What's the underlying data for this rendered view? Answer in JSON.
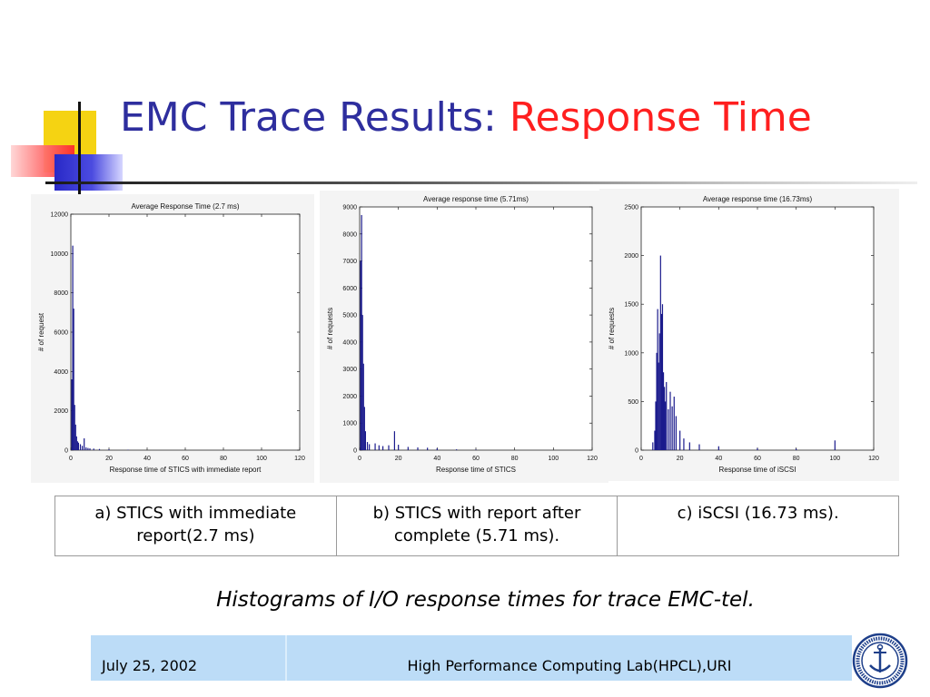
{
  "slide": {
    "title_part1": "EMC Trace Results: ",
    "title_part2": "Response Time",
    "title_color1": "#2e2e9e",
    "title_color2": "#ff1f1f",
    "footnote": "Histograms of I/O response times for trace EMC-tel."
  },
  "captions": [
    "a) STICS with immediate report(2.7 ms)",
    "b) STICS with report after complete (5.71 ms).",
    "c) iSCSI (16.73 ms)."
  ],
  "footer": {
    "date": "July 25, 2002",
    "org": "High Performance Computing Lab(HPCL),URI"
  },
  "seal": {
    "icon": "university-seal-icon"
  },
  "chart_data": [
    {
      "type": "bar",
      "title": "Average Response Time (2.7 ms)",
      "xlabel": "Response time of STICS with immediate report",
      "ylabel": "# of request",
      "xlim": [
        0,
        120
      ],
      "ylim": [
        0,
        12000
      ],
      "xticks": [
        0,
        20,
        40,
        60,
        80,
        100,
        120
      ],
      "yticks": [
        0,
        2000,
        4000,
        6000,
        8000,
        10000,
        12000
      ],
      "color": "#1a1a8c",
      "x": [
        0.5,
        1,
        1.5,
        2,
        2.5,
        3,
        3.5,
        4,
        5,
        6,
        7,
        8,
        9,
        10,
        12,
        15,
        20,
        30
      ],
      "values": [
        3600,
        10400,
        7200,
        2300,
        1300,
        700,
        450,
        380,
        300,
        220,
        600,
        140,
        110,
        90,
        80,
        60,
        40,
        20
      ]
    },
    {
      "type": "bar",
      "title": "Average response time (5.71ms)",
      "xlabel": "Response time of STICS",
      "ylabel": "# of requests",
      "xlim": [
        0,
        120
      ],
      "ylim": [
        0,
        9000
      ],
      "xticks": [
        0,
        20,
        40,
        60,
        80,
        100,
        120
      ],
      "yticks": [
        0,
        1000,
        2000,
        3000,
        4000,
        5000,
        6000,
        7000,
        8000,
        9000
      ],
      "color": "#1a1a8c",
      "x": [
        0.5,
        1,
        1.5,
        2,
        2.5,
        3,
        4,
        5,
        8,
        10,
        12,
        15,
        18,
        20,
        25,
        30,
        35,
        40,
        50,
        60
      ],
      "values": [
        7000,
        8700,
        5000,
        3200,
        1600,
        700,
        300,
        220,
        250,
        180,
        150,
        180,
        700,
        200,
        120,
        100,
        90,
        70,
        30,
        20
      ]
    },
    {
      "type": "bar",
      "title": "Average response time (16.73ms)",
      "xlabel": "Response time of iSCSI",
      "ylabel": "# of requests",
      "xlim": [
        0,
        120
      ],
      "ylim": [
        0,
        2500
      ],
      "xticks": [
        0,
        20,
        40,
        60,
        80,
        100,
        120
      ],
      "yticks": [
        0,
        500,
        1000,
        1500,
        2000,
        2500
      ],
      "color": "#1a1a8c",
      "x": [
        6,
        7,
        7.5,
        8,
        8.5,
        9,
        9.5,
        10,
        10.5,
        11,
        11.5,
        12,
        12.5,
        13,
        14,
        15,
        16,
        17,
        18,
        20,
        22,
        25,
        30,
        40,
        60,
        80,
        100
      ],
      "values": [
        80,
        200,
        500,
        1000,
        1450,
        900,
        1200,
        2000,
        1400,
        1500,
        800,
        650,
        500,
        700,
        420,
        600,
        450,
        550,
        350,
        200,
        120,
        80,
        60,
        40,
        20,
        15,
        100
      ]
    }
  ]
}
